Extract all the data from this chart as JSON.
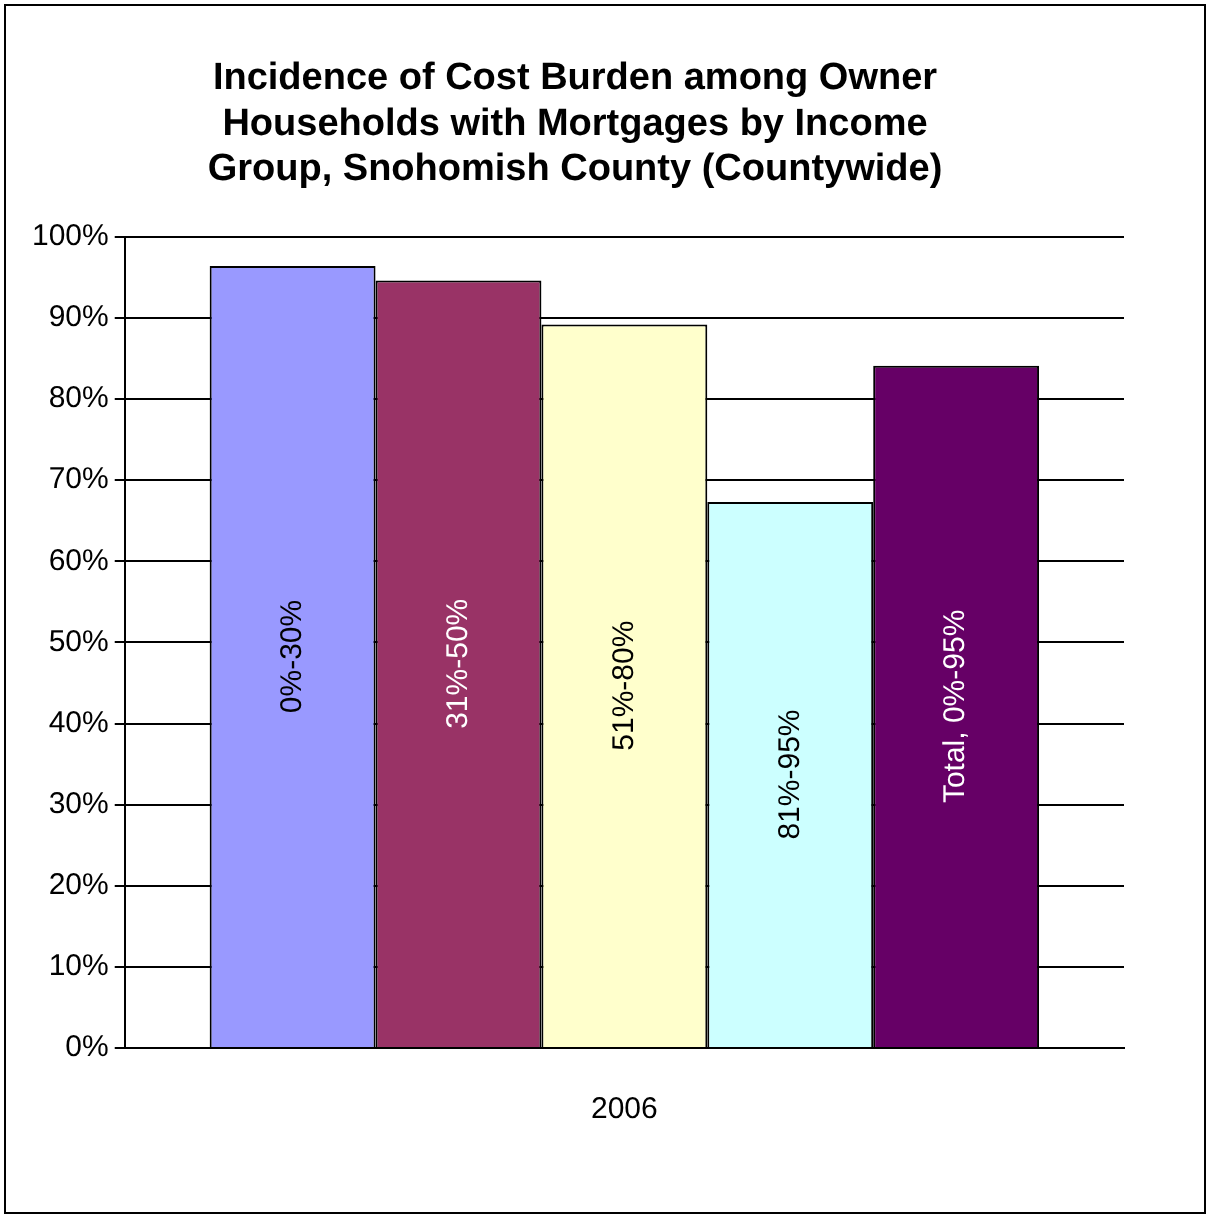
{
  "chart_data": {
    "type": "bar",
    "title": "Incidence of Cost Burden among Owner Households with Mortgages by Income Group, Snohomish County (Countywide)",
    "categories": [
      "2006"
    ],
    "series": [
      {
        "name": "0%-30%",
        "color": "#9999ff",
        "values": [
          96.4
        ]
      },
      {
        "name": "31%-50%",
        "color": "#993366",
        "values": [
          94.6
        ]
      },
      {
        "name": "51%-80%",
        "color": "#ffffcc",
        "values": [
          89.2
        ]
      },
      {
        "name": "81%-95%",
        "color": "#ccffff",
        "values": [
          67.3
        ]
      },
      {
        "name": "Total, 0%-95%",
        "color": "#660066",
        "values": [
          84.1
        ]
      }
    ],
    "ylim": [
      0,
      100
    ],
    "yticks": [
      {
        "value": 0,
        "label": "0%"
      },
      {
        "value": 10,
        "label": "10%"
      },
      {
        "value": 20,
        "label": "20%"
      },
      {
        "value": 30,
        "label": "30%"
      },
      {
        "value": 40,
        "label": "40%"
      },
      {
        "value": 50,
        "label": "50%"
      },
      {
        "value": 60,
        "label": "60%"
      },
      {
        "value": 70,
        "label": "70%"
      },
      {
        "value": 80,
        "label": "80%"
      },
      {
        "value": 90,
        "label": "90%"
      },
      {
        "value": 100,
        "label": "100%"
      }
    ],
    "grid": "y",
    "legend": false
  }
}
